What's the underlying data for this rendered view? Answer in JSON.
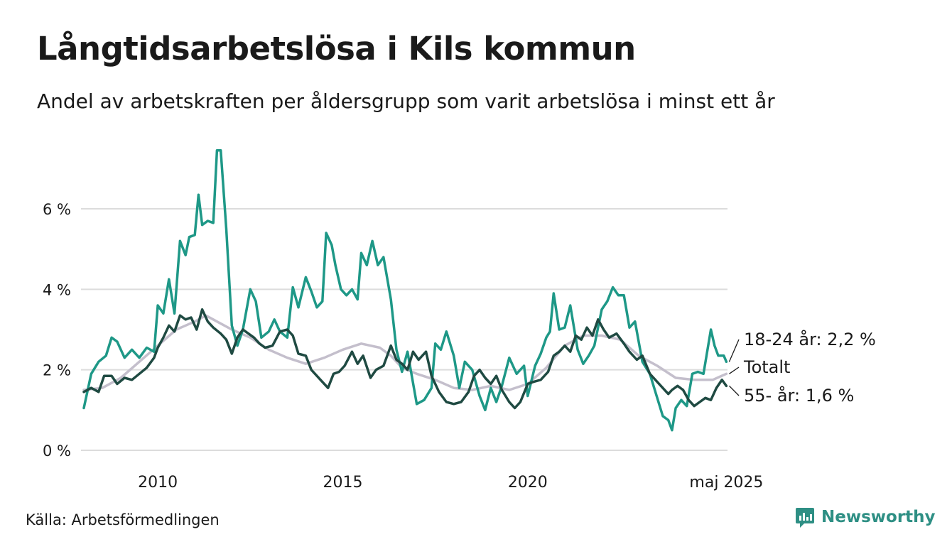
{
  "title": "Långtidsarbetslösa i Kils kommun",
  "subtitle": "Andel av arbetskraften per åldersgrupp som varit arbetslösa i minst ett år",
  "source": "Källa: Arbetsförmedlingen",
  "brand": {
    "name": "Newsworthy",
    "icon": "newsworthy-logo-icon",
    "color": "#2e8f84"
  },
  "chart_data": {
    "type": "line",
    "x_unit": "year",
    "xlim": [
      2008.0,
      2025.4
    ],
    "ylim": [
      0,
      7.5
    ],
    "y_ticks": [
      {
        "value": 0,
        "label": "0 %"
      },
      {
        "value": 2,
        "label": "2 %"
      },
      {
        "value": 4,
        "label": "4 %"
      },
      {
        "value": 6,
        "label": "6 %"
      }
    ],
    "x_ticks": [
      {
        "value": 2010,
        "label": "2010"
      },
      {
        "value": 2015,
        "label": "2015"
      },
      {
        "value": 2020,
        "label": "2020"
      },
      {
        "value": 2025.37,
        "label": "maj 2025"
      }
    ],
    "grid": "horizontal",
    "series": [
      {
        "name": "Totalt",
        "end_label": "Totalt",
        "color": "#c4bfcc",
        "points": [
          [
            2008.0,
            1.5
          ],
          [
            2008.5,
            1.55
          ],
          [
            2009.0,
            1.8
          ],
          [
            2009.5,
            2.2
          ],
          [
            2010.0,
            2.6
          ],
          [
            2010.5,
            3.0
          ],
          [
            2011.0,
            3.2
          ],
          [
            2011.3,
            3.35
          ],
          [
            2011.6,
            3.2
          ],
          [
            2012.0,
            3.0
          ],
          [
            2012.5,
            2.8
          ],
          [
            2013.0,
            2.5
          ],
          [
            2013.5,
            2.3
          ],
          [
            2014.0,
            2.15
          ],
          [
            2014.5,
            2.3
          ],
          [
            2015.0,
            2.5
          ],
          [
            2015.5,
            2.65
          ],
          [
            2016.0,
            2.55
          ],
          [
            2016.3,
            2.35
          ],
          [
            2016.6,
            2.05
          ],
          [
            2017.0,
            1.9
          ],
          [
            2017.5,
            1.75
          ],
          [
            2018.0,
            1.55
          ],
          [
            2018.5,
            1.5
          ],
          [
            2019.0,
            1.6
          ],
          [
            2019.5,
            1.5
          ],
          [
            2020.0,
            1.65
          ],
          [
            2020.5,
            2.05
          ],
          [
            2021.0,
            2.6
          ],
          [
            2021.5,
            2.85
          ],
          [
            2022.0,
            2.85
          ],
          [
            2022.5,
            2.75
          ],
          [
            2023.0,
            2.35
          ],
          [
            2023.5,
            2.1
          ],
          [
            2024.0,
            1.8
          ],
          [
            2024.5,
            1.75
          ],
          [
            2025.0,
            1.75
          ],
          [
            2025.37,
            1.9
          ]
        ]
      },
      {
        "name": "18-24 år",
        "end_label": "18-24 år: 2,2 %",
        "color": "#1e9887",
        "points": [
          [
            2008.0,
            1.05
          ],
          [
            2008.2,
            1.9
          ],
          [
            2008.4,
            2.2
          ],
          [
            2008.6,
            2.35
          ],
          [
            2008.75,
            2.8
          ],
          [
            2008.9,
            2.7
          ],
          [
            2009.1,
            2.3
          ],
          [
            2009.3,
            2.5
          ],
          [
            2009.5,
            2.3
          ],
          [
            2009.7,
            2.55
          ],
          [
            2009.9,
            2.45
          ],
          [
            2010.0,
            3.6
          ],
          [
            2010.15,
            3.4
          ],
          [
            2010.3,
            4.25
          ],
          [
            2010.45,
            3.4
          ],
          [
            2010.6,
            5.2
          ],
          [
            2010.75,
            4.85
          ],
          [
            2010.85,
            5.3
          ],
          [
            2011.0,
            5.35
          ],
          [
            2011.1,
            6.35
          ],
          [
            2011.2,
            5.6
          ],
          [
            2011.35,
            5.7
          ],
          [
            2011.5,
            5.65
          ],
          [
            2011.6,
            7.45
          ],
          [
            2011.7,
            7.45
          ],
          [
            2011.85,
            5.5
          ],
          [
            2012.0,
            3.1
          ],
          [
            2012.15,
            2.6
          ],
          [
            2012.3,
            3.0
          ],
          [
            2012.5,
            4.0
          ],
          [
            2012.65,
            3.7
          ],
          [
            2012.8,
            2.8
          ],
          [
            2013.0,
            2.95
          ],
          [
            2013.15,
            3.25
          ],
          [
            2013.3,
            2.95
          ],
          [
            2013.5,
            2.8
          ],
          [
            2013.65,
            4.05
          ],
          [
            2013.8,
            3.55
          ],
          [
            2014.0,
            4.3
          ],
          [
            2014.15,
            3.95
          ],
          [
            2014.3,
            3.55
          ],
          [
            2014.45,
            3.7
          ],
          [
            2014.55,
            5.4
          ],
          [
            2014.7,
            5.1
          ],
          [
            2014.8,
            4.6
          ],
          [
            2014.95,
            4.0
          ],
          [
            2015.1,
            3.85
          ],
          [
            2015.25,
            4.0
          ],
          [
            2015.4,
            3.75
          ],
          [
            2015.5,
            4.9
          ],
          [
            2015.65,
            4.6
          ],
          [
            2015.8,
            5.2
          ],
          [
            2015.95,
            4.6
          ],
          [
            2016.1,
            4.8
          ],
          [
            2016.3,
            3.75
          ],
          [
            2016.45,
            2.5
          ],
          [
            2016.6,
            1.95
          ],
          [
            2016.75,
            2.45
          ],
          [
            2017.0,
            1.15
          ],
          [
            2017.2,
            1.25
          ],
          [
            2017.4,
            1.55
          ],
          [
            2017.5,
            2.65
          ],
          [
            2017.65,
            2.5
          ],
          [
            2017.8,
            2.95
          ],
          [
            2018.0,
            2.35
          ],
          [
            2018.15,
            1.55
          ],
          [
            2018.3,
            2.2
          ],
          [
            2018.5,
            2.0
          ],
          [
            2018.7,
            1.35
          ],
          [
            2018.85,
            1.0
          ],
          [
            2019.0,
            1.55
          ],
          [
            2019.15,
            1.2
          ],
          [
            2019.3,
            1.6
          ],
          [
            2019.5,
            2.3
          ],
          [
            2019.7,
            1.9
          ],
          [
            2019.9,
            2.1
          ],
          [
            2020.0,
            1.35
          ],
          [
            2020.2,
            2.1
          ],
          [
            2020.35,
            2.4
          ],
          [
            2020.5,
            2.8
          ],
          [
            2020.6,
            2.95
          ],
          [
            2020.7,
            3.9
          ],
          [
            2020.85,
            3.0
          ],
          [
            2021.0,
            3.05
          ],
          [
            2021.15,
            3.6
          ],
          [
            2021.35,
            2.5
          ],
          [
            2021.5,
            2.15
          ],
          [
            2021.65,
            2.35
          ],
          [
            2021.8,
            2.6
          ],
          [
            2022.0,
            3.5
          ],
          [
            2022.15,
            3.7
          ],
          [
            2022.3,
            4.05
          ],
          [
            2022.45,
            3.85
          ],
          [
            2022.6,
            3.85
          ],
          [
            2022.75,
            3.05
          ],
          [
            2022.9,
            3.2
          ],
          [
            2023.1,
            2.2
          ],
          [
            2023.3,
            1.9
          ],
          [
            2023.5,
            1.3
          ],
          [
            2023.65,
            0.85
          ],
          [
            2023.8,
            0.75
          ],
          [
            2023.9,
            0.5
          ],
          [
            2024.0,
            1.05
          ],
          [
            2024.15,
            1.25
          ],
          [
            2024.3,
            1.1
          ],
          [
            2024.45,
            1.9
          ],
          [
            2024.6,
            1.95
          ],
          [
            2024.75,
            1.9
          ],
          [
            2024.95,
            3.0
          ],
          [
            2025.05,
            2.6
          ],
          [
            2025.15,
            2.35
          ],
          [
            2025.3,
            2.35
          ],
          [
            2025.37,
            2.2
          ]
        ]
      },
      {
        "name": "55- år",
        "end_label": "55- år: 1,6 %",
        "color": "#1f4a42",
        "points": [
          [
            2008.0,
            1.45
          ],
          [
            2008.2,
            1.55
          ],
          [
            2008.4,
            1.45
          ],
          [
            2008.55,
            1.85
          ],
          [
            2008.75,
            1.85
          ],
          [
            2008.9,
            1.65
          ],
          [
            2009.1,
            1.8
          ],
          [
            2009.3,
            1.75
          ],
          [
            2009.5,
            1.9
          ],
          [
            2009.7,
            2.05
          ],
          [
            2009.9,
            2.3
          ],
          [
            2010.0,
            2.55
          ],
          [
            2010.15,
            2.8
          ],
          [
            2010.3,
            3.1
          ],
          [
            2010.45,
            2.95
          ],
          [
            2010.6,
            3.35
          ],
          [
            2010.75,
            3.25
          ],
          [
            2010.9,
            3.3
          ],
          [
            2011.05,
            3.0
          ],
          [
            2011.2,
            3.5
          ],
          [
            2011.35,
            3.2
          ],
          [
            2011.5,
            3.05
          ],
          [
            2011.7,
            2.9
          ],
          [
            2011.85,
            2.75
          ],
          [
            2012.0,
            2.4
          ],
          [
            2012.15,
            2.8
          ],
          [
            2012.3,
            3.0
          ],
          [
            2012.45,
            2.9
          ],
          [
            2012.6,
            2.8
          ],
          [
            2012.75,
            2.65
          ],
          [
            2012.9,
            2.55
          ],
          [
            2013.1,
            2.6
          ],
          [
            2013.3,
            2.95
          ],
          [
            2013.5,
            3.0
          ],
          [
            2013.65,
            2.85
          ],
          [
            2013.8,
            2.4
          ],
          [
            2014.0,
            2.35
          ],
          [
            2014.15,
            2.0
          ],
          [
            2014.3,
            1.85
          ],
          [
            2014.45,
            1.7
          ],
          [
            2014.6,
            1.55
          ],
          [
            2014.75,
            1.9
          ],
          [
            2014.9,
            1.95
          ],
          [
            2015.05,
            2.1
          ],
          [
            2015.25,
            2.45
          ],
          [
            2015.4,
            2.15
          ],
          [
            2015.55,
            2.35
          ],
          [
            2015.75,
            1.8
          ],
          [
            2015.9,
            2.0
          ],
          [
            2016.1,
            2.1
          ],
          [
            2016.3,
            2.6
          ],
          [
            2016.45,
            2.25
          ],
          [
            2016.6,
            2.15
          ],
          [
            2016.75,
            2.0
          ],
          [
            2016.9,
            2.45
          ],
          [
            2017.05,
            2.25
          ],
          [
            2017.25,
            2.45
          ],
          [
            2017.4,
            1.85
          ],
          [
            2017.6,
            1.45
          ],
          [
            2017.8,
            1.2
          ],
          [
            2018.0,
            1.15
          ],
          [
            2018.2,
            1.2
          ],
          [
            2018.4,
            1.45
          ],
          [
            2018.55,
            1.85
          ],
          [
            2018.7,
            2.0
          ],
          [
            2018.85,
            1.8
          ],
          [
            2019.0,
            1.65
          ],
          [
            2019.15,
            1.85
          ],
          [
            2019.3,
            1.5
          ],
          [
            2019.5,
            1.2
          ],
          [
            2019.65,
            1.05
          ],
          [
            2019.8,
            1.2
          ],
          [
            2020.0,
            1.65
          ],
          [
            2020.15,
            1.7
          ],
          [
            2020.35,
            1.75
          ],
          [
            2020.55,
            1.95
          ],
          [
            2020.7,
            2.35
          ],
          [
            2020.85,
            2.45
          ],
          [
            2021.0,
            2.6
          ],
          [
            2021.15,
            2.45
          ],
          [
            2021.3,
            2.85
          ],
          [
            2021.45,
            2.75
          ],
          [
            2021.6,
            3.05
          ],
          [
            2021.75,
            2.85
          ],
          [
            2021.9,
            3.25
          ],
          [
            2022.05,
            3.0
          ],
          [
            2022.2,
            2.8
          ],
          [
            2022.4,
            2.9
          ],
          [
            2022.6,
            2.65
          ],
          [
            2022.75,
            2.45
          ],
          [
            2022.95,
            2.25
          ],
          [
            2023.1,
            2.35
          ],
          [
            2023.3,
            1.9
          ],
          [
            2023.5,
            1.7
          ],
          [
            2023.65,
            1.55
          ],
          [
            2023.8,
            1.4
          ],
          [
            2023.9,
            1.5
          ],
          [
            2024.05,
            1.6
          ],
          [
            2024.2,
            1.5
          ],
          [
            2024.35,
            1.25
          ],
          [
            2024.5,
            1.1
          ],
          [
            2024.65,
            1.2
          ],
          [
            2024.8,
            1.3
          ],
          [
            2024.95,
            1.25
          ],
          [
            2025.1,
            1.55
          ],
          [
            2025.25,
            1.75
          ],
          [
            2025.37,
            1.6
          ]
        ]
      }
    ]
  }
}
